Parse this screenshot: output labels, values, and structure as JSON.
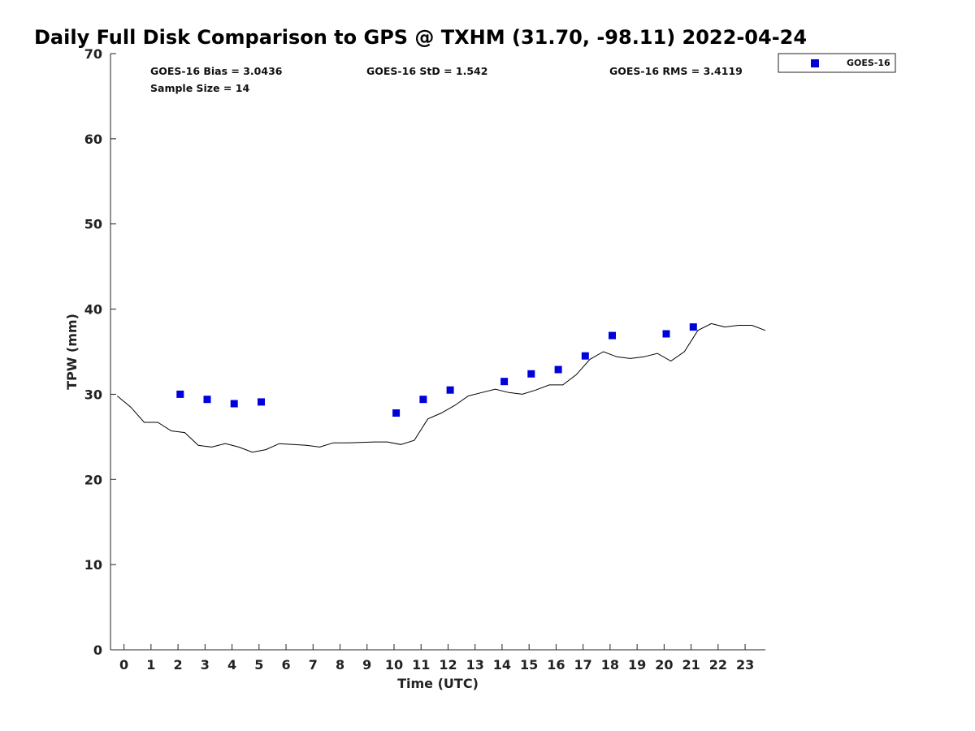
{
  "chart_data": {
    "type": "scatter",
    "title": "Daily Full Disk Comparison to GPS @ TXHM (31.70, -98.11) 2022-04-24",
    "xlabel": "Time (UTC)",
    "ylabel": "TPW (mm)",
    "xlim": [
      -0.5,
      23.75
    ],
    "ylim": [
      0,
      70
    ],
    "xticks": [
      "0",
      "1",
      "2",
      "3",
      "4",
      "5",
      "6",
      "7",
      "8",
      "9",
      "10",
      "11",
      "12",
      "13",
      "14",
      "15",
      "16",
      "17",
      "18",
      "19",
      "20",
      "21",
      "22",
      "23"
    ],
    "yticks": [
      "0",
      "10",
      "20",
      "30",
      "40",
      "50",
      "60",
      "70"
    ],
    "grid": false,
    "legend_position": "top-right",
    "stats": {
      "bias": "GOES-16 Bias = 3.0436",
      "std": "GOES-16 StD = 1.542",
      "rms": "GOES-16 RMS = 3.4119",
      "sample_size": "Sample Size = 14"
    },
    "series": [
      {
        "name": "GOES-16",
        "kind": "scatter",
        "marker": "square",
        "color": "#0000dd",
        "x": [
          2.08,
          3.08,
          4.08,
          5.08,
          10.08,
          11.08,
          12.08,
          14.08,
          15.08,
          16.08,
          17.08,
          18.08,
          20.08,
          21.08
        ],
        "y": [
          30.0,
          29.4,
          28.9,
          29.1,
          27.8,
          29.4,
          30.5,
          31.5,
          32.4,
          32.9,
          34.5,
          36.9,
          37.1,
          37.9
        ]
      },
      {
        "name": "GPS",
        "kind": "line",
        "color": "#000000",
        "x": [
          -0.25,
          0.25,
          0.75,
          1.25,
          1.75,
          2.25,
          2.75,
          3.25,
          3.75,
          4.25,
          4.75,
          5.25,
          5.75,
          6.25,
          6.75,
          7.25,
          7.75,
          8.25,
          8.75,
          9.25,
          9.75,
          10.25,
          10.75,
          11.25,
          11.75,
          12.25,
          12.75,
          13.25,
          13.75,
          14.25,
          14.75,
          15.25,
          15.75,
          16.25,
          16.75,
          17.25,
          17.75,
          18.25,
          18.75,
          19.25,
          19.75,
          20.25,
          20.75,
          21.25,
          21.75,
          22.25,
          22.75,
          23.25,
          23.75
        ],
        "y": [
          29.8,
          28.5,
          26.7,
          26.7,
          25.7,
          25.5,
          24.0,
          23.8,
          24.2,
          23.8,
          23.2,
          23.5,
          24.2,
          24.1,
          24.0,
          23.8,
          24.3,
          24.3,
          24.35,
          24.4,
          24.4,
          24.1,
          24.6,
          27.1,
          27.8,
          28.7,
          29.8,
          30.2,
          30.6,
          30.2,
          30.0,
          30.5,
          31.1,
          31.1,
          32.3,
          34.1,
          35.0,
          34.4,
          34.2,
          34.4,
          34.8,
          33.9,
          35.0,
          37.5,
          38.3,
          37.9,
          38.1,
          38.1,
          37.5
        ]
      }
    ]
  }
}
